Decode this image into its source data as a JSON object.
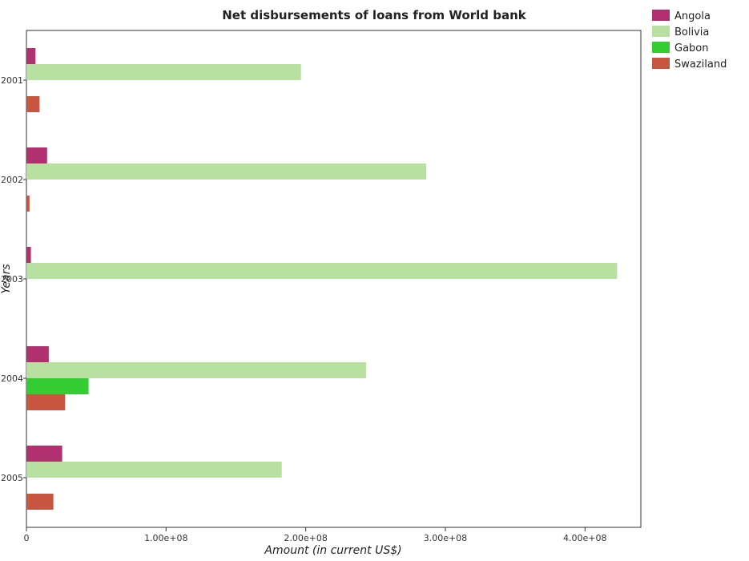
{
  "chart_data": {
    "type": "bar",
    "orientation": "horizontal",
    "title": "Net disbursements of loans from World bank",
    "xlabel": "Amount (in current US$)",
    "ylabel": "Years",
    "categories": [
      "2001",
      "2002",
      "2003",
      "2004",
      "2005"
    ],
    "x_ticks": [
      "0",
      "100000000",
      "200000000",
      "300000000",
      "400000000"
    ],
    "x_tick_labels": [
      "0",
      "1.00e+08",
      "2.00e+08",
      "3.00e+08",
      "4.00e+08"
    ],
    "xlim": [
      0,
      440000000
    ],
    "grid": false,
    "legend_position": "top-right",
    "series": [
      {
        "name": "Angola",
        "color": "#b03070",
        "values": [
          6500000,
          14800000,
          3200000,
          16000000,
          25600000
        ]
      },
      {
        "name": "Bolivia",
        "color": "#b8e0a0",
        "values": [
          196600000,
          286300000,
          423000000,
          243200000,
          182800000
        ]
      },
      {
        "name": "Gabon",
        "color": "#33cc33",
        "values": [
          0,
          0,
          0,
          44500000,
          0
        ]
      },
      {
        "name": "Swaziland",
        "color": "#c85540",
        "values": [
          9400000,
          2200000,
          0,
          27700000,
          19300000
        ]
      }
    ]
  }
}
